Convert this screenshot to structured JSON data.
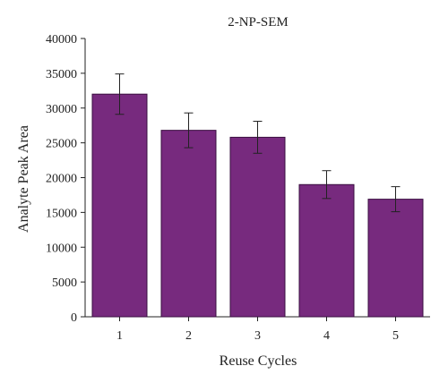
{
  "chart_data": {
    "type": "bar",
    "title": "2-NP-SEM",
    "xlabel": "Reuse Cycles",
    "ylabel": "Analyte Peak Area",
    "categories": [
      "1",
      "2",
      "3",
      "4",
      "5"
    ],
    "series": [
      {
        "values": [
          32000,
          26800,
          25800,
          19000,
          16900
        ],
        "error": [
          2900,
          2500,
          2300,
          2000,
          1800
        ]
      }
    ],
    "ylim": [
      0,
      40000
    ],
    "yticks": [
      "0",
      "5000",
      "10000",
      "15000",
      "20000",
      "25000",
      "30000",
      "35000",
      "40000"
    ],
    "grid": false,
    "colors": {
      "bar": "#772a7e",
      "bar_edge": "#3a0f40",
      "axis": "#222222"
    }
  }
}
